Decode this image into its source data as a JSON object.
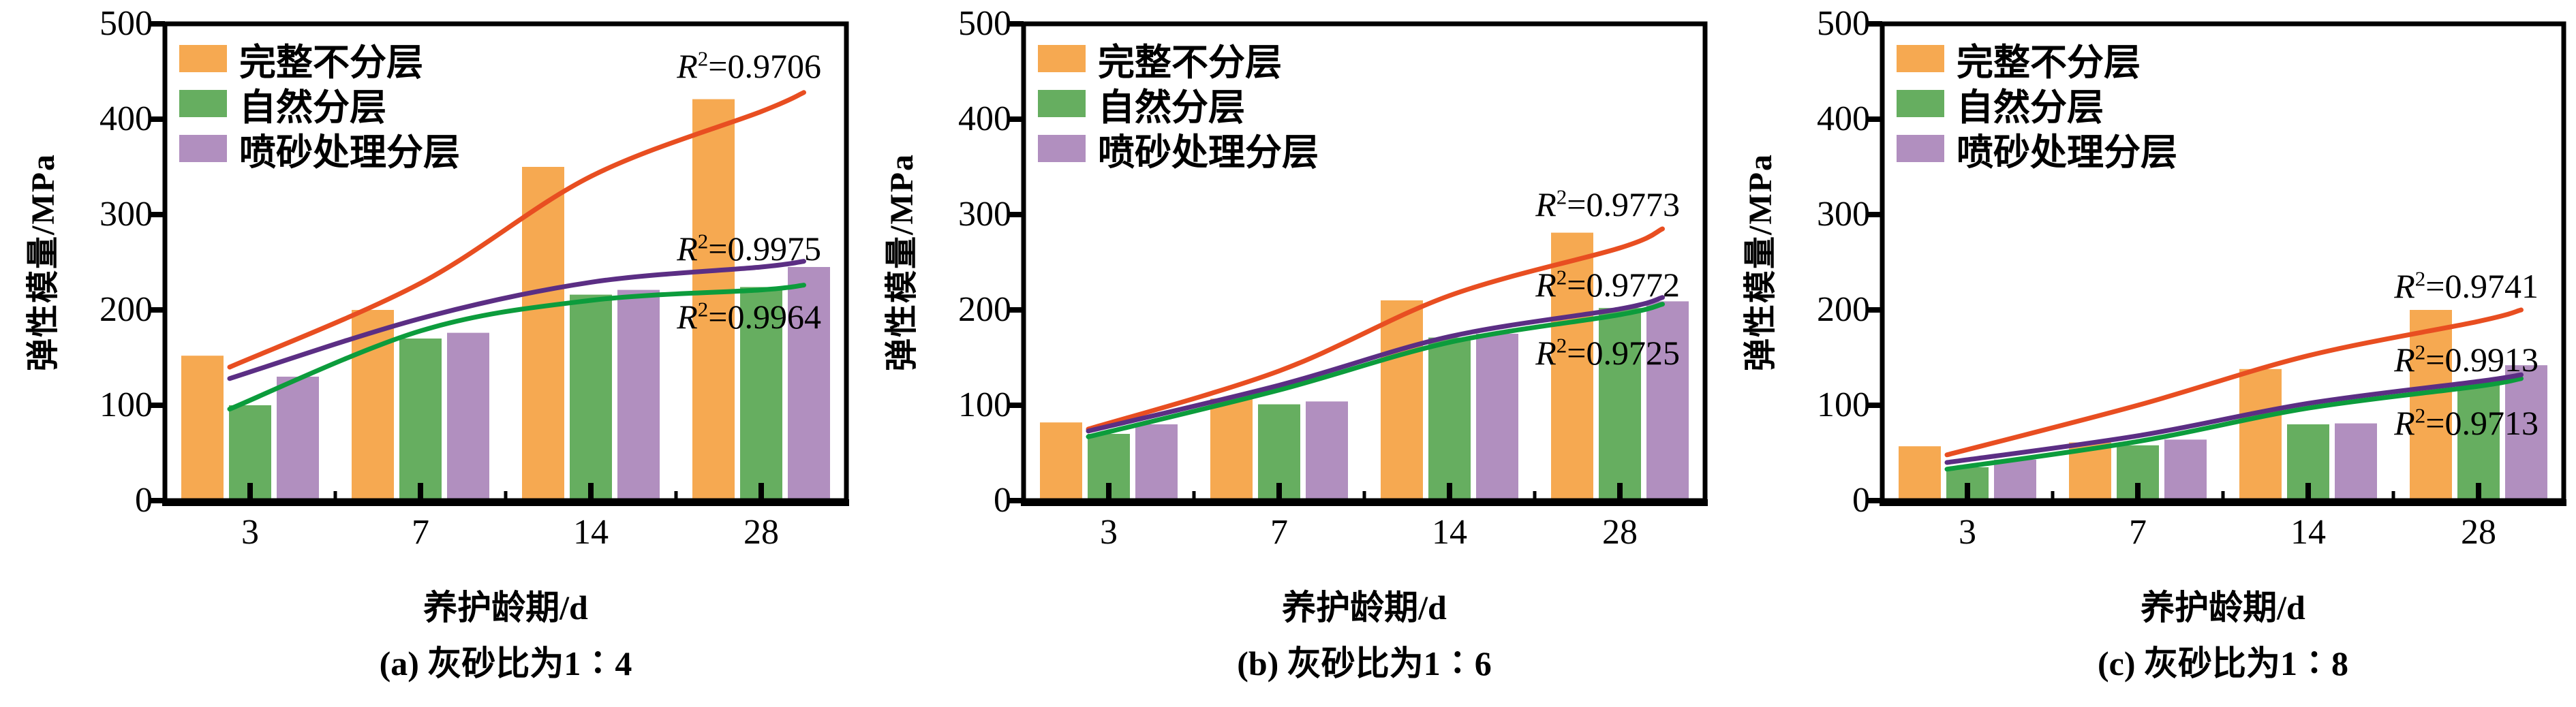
{
  "figure_colors": {
    "bar_orange": "#F6A951",
    "bar_green": "#66AE60",
    "bar_purple": "#B18FBF",
    "curve_orange": "#E84E21",
    "curve_green": "#0C9C3C",
    "curve_purple": "#5B2E84",
    "axis": "#000000"
  },
  "chart_data": [
    {
      "type": "bar",
      "caption": "(a) 灰砂比为1∶4",
      "xlabel": "养护龄期/d",
      "ylabel": "弹性模量/MPa",
      "categories": [
        "3",
        "7",
        "14",
        "28"
      ],
      "yticks": [
        0,
        100,
        200,
        300,
        400,
        500
      ],
      "ylim": [
        0,
        500
      ],
      "legend_position": "top-left",
      "series": [
        {
          "key": "intact-unlayered",
          "name": "完整不分层",
          "color": "#F6A951",
          "curve_color": "#E84E21",
          "values": [
            152,
            200,
            350,
            421
          ],
          "fit": {
            "t": [
              -0.12,
              1,
              2,
              3,
              3.25
            ],
            "v": [
              140,
              228,
              340,
              408,
              428
            ]
          }
        },
        {
          "key": "natural-layered",
          "name": "自然分层",
          "color": "#66AE60",
          "curve_color": "#0C9C3C",
          "values": [
            100,
            170,
            216,
            224
          ],
          "fit": {
            "t": [
              -0.12,
              1,
              2,
              3,
              3.25
            ],
            "v": [
              96,
              178,
              210,
              221,
              226
            ]
          }
        },
        {
          "key": "sandblasted-layered",
          "name": "喷砂处理分层",
          "color": "#B18FBF",
          "curve_color": "#5B2E84",
          "values": [
            130,
            176,
            221,
            245
          ],
          "fit": {
            "t": [
              -0.12,
              1,
              2,
              3,
              3.25
            ],
            "v": [
              128,
              191,
              229,
              245,
              251
            ]
          }
        }
      ],
      "annotations": [
        {
          "r": "R",
          "sup": "2",
          "val": "=0.9706",
          "y": 97
        },
        {
          "r": "R",
          "sup": "2",
          "val": "=0.9975",
          "y": 365
        },
        {
          "r": "R",
          "sup": "2",
          "val": "=0.9964",
          "y": 465
        }
      ]
    },
    {
      "type": "bar",
      "caption": "(b) 灰砂比为1∶6",
      "xlabel": "养护龄期/d",
      "ylabel": "弹性模量/MPa",
      "categories": [
        "3",
        "7",
        "14",
        "28"
      ],
      "yticks": [
        0,
        100,
        200,
        300,
        400,
        500
      ],
      "ylim": [
        0,
        500
      ],
      "legend_position": "top-left",
      "series": [
        {
          "key": "intact-unlayered",
          "name": "完整不分层",
          "color": "#F6A951",
          "curve_color": "#E84E21",
          "values": [
            82,
            107,
            210,
            281
          ],
          "fit": {
            "t": [
              -0.12,
              1,
              2,
              3,
              3.25
            ],
            "v": [
              75,
              136,
              215,
              265,
              285
            ]
          }
        },
        {
          "key": "natural-layered",
          "name": "自然分层",
          "color": "#66AE60",
          "curve_color": "#0C9C3C",
          "values": [
            70,
            101,
            171,
            202
          ],
          "fit": {
            "t": [
              -0.12,
              1,
              2,
              3,
              3.25
            ],
            "v": [
              67,
              116,
              166,
              195,
              206
            ]
          }
        },
        {
          "key": "sandblasted-layered",
          "name": "喷砂处理分层",
          "color": "#B18FBF",
          "curve_color": "#5B2E84",
          "values": [
            80,
            104,
            175,
            209
          ],
          "fit": {
            "t": [
              -0.12,
              1,
              2,
              3,
              3.25
            ],
            "v": [
              73,
              121,
              172,
              201,
              213
            ]
          }
        }
      ],
      "annotations": [
        {
          "r": "R",
          "sup": "2",
          "val": "=0.9773",
          "y": 300
        },
        {
          "r": "R",
          "sup": "2",
          "val": "=0.9772",
          "y": 418
        },
        {
          "r": "R",
          "sup": "2",
          "val": "=0.9725",
          "y": 518
        }
      ]
    },
    {
      "type": "bar",
      "caption": "(c) 灰砂比为1∶8",
      "xlabel": "养护龄期/d",
      "ylabel": "弹性模量/MPa",
      "categories": [
        "3",
        "7",
        "14",
        "28"
      ],
      "yticks": [
        0,
        100,
        200,
        300,
        400,
        500
      ],
      "ylim": [
        0,
        500
      ],
      "legend_position": "top-left",
      "series": [
        {
          "key": "intact-unlayered",
          "name": "完整不分层",
          "color": "#F6A951",
          "curve_color": "#E84E21",
          "values": [
            57,
            61,
            138,
            200
          ],
          "fit": {
            "t": [
              -0.12,
              1,
              2,
              3,
              3.25
            ],
            "v": [
              48,
              100,
              152,
              188,
              200
            ]
          }
        },
        {
          "key": "natural-layered",
          "name": "自然分层",
          "color": "#66AE60",
          "curve_color": "#0C9C3C",
          "values": [
            35,
            58,
            80,
            124
          ],
          "fit": {
            "t": [
              -0.12,
              1,
              2,
              3,
              3.25
            ],
            "v": [
              33,
              62,
              97,
              120,
              128
            ]
          }
        },
        {
          "key": "sandblasted-layered",
          "name": "喷砂处理分层",
          "color": "#B18FBF",
          "curve_color": "#5B2E84",
          "values": [
            43,
            64,
            81,
            142
          ],
          "fit": {
            "t": [
              -0.12,
              1,
              2,
              3,
              3.25
            ],
            "v": [
              40,
              68,
              102,
              125,
              132
            ]
          }
        }
      ],
      "annotations": [
        {
          "r": "R",
          "sup": "2",
          "val": "=0.9741",
          "y": 420
        },
        {
          "r": "R",
          "sup": "2",
          "val": "=0.9913",
          "y": 528
        },
        {
          "r": "R",
          "sup": "2",
          "val": "=0.9713",
          "y": 621
        }
      ]
    }
  ]
}
